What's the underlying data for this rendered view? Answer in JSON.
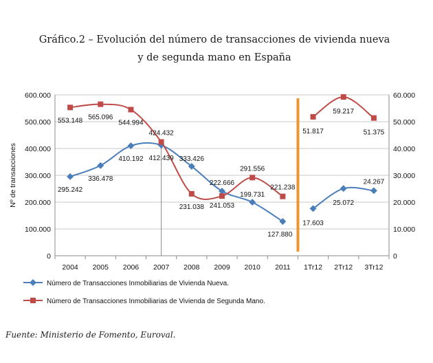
{
  "chart_data": {
    "type": "line",
    "title_line1": "Gráfico.2 – Evolución del número de transacciones de vivienda nueva",
    "title_line2": "y de segunda mano en España",
    "ylabel": "Nº de transacciones",
    "source": "Fuente: Ministerio de Fomento, Euroval.",
    "categories": [
      "2004",
      "2005",
      "2006",
      "2007",
      "2008",
      "2009",
      "2010",
      "2011",
      "1Tr12",
      "2Tr12",
      "3Tr12"
    ],
    "left_axis": {
      "ylim": [
        0,
        600000
      ],
      "ticks": [
        "0",
        "100.000",
        "200.000",
        "300.000",
        "400.000",
        "500.000",
        "600.000"
      ]
    },
    "right_axis": {
      "ylim": [
        0,
        60000
      ],
      "ticks": [
        "0",
        "10.000",
        "20.000",
        "30.000",
        "40.000",
        "50.000",
        "60.000"
      ]
    },
    "grid": true,
    "separator_after_index": 7,
    "separator_color": "#f0932b",
    "series": [
      {
        "name": "Número de Transacciones Inmobiliarias de Vivienda Nueva.",
        "color": "#4a7ebb",
        "marker": "diamond",
        "annual_values": [
          295242,
          336478,
          410192,
          412439,
          333426,
          241053,
          199731,
          127880
        ],
        "quarterly_values": [
          17603,
          25072,
          24267
        ],
        "labels": [
          "295.242",
          "336.478",
          "410.192",
          "412.439",
          "333.426",
          "241.053",
          "199.731",
          "127.880",
          "17.603",
          "25.072",
          "24.267"
        ]
      },
      {
        "name": "Número de Transacciones Inmobiliarias de Vivienda de Segunda Mano.",
        "color": "#be4b48",
        "marker": "square",
        "annual_values": [
          553148,
          565096,
          544994,
          424432,
          231038,
          222666,
          291556,
          221238
        ],
        "quarterly_values": [
          51817,
          59217,
          51375
        ],
        "labels": [
          "553.148",
          "565.096",
          "544.994",
          "424.432",
          "231.038",
          "222.666",
          "291.556",
          "221.238",
          "51.817",
          "59.217",
          "51.375"
        ]
      }
    ]
  }
}
